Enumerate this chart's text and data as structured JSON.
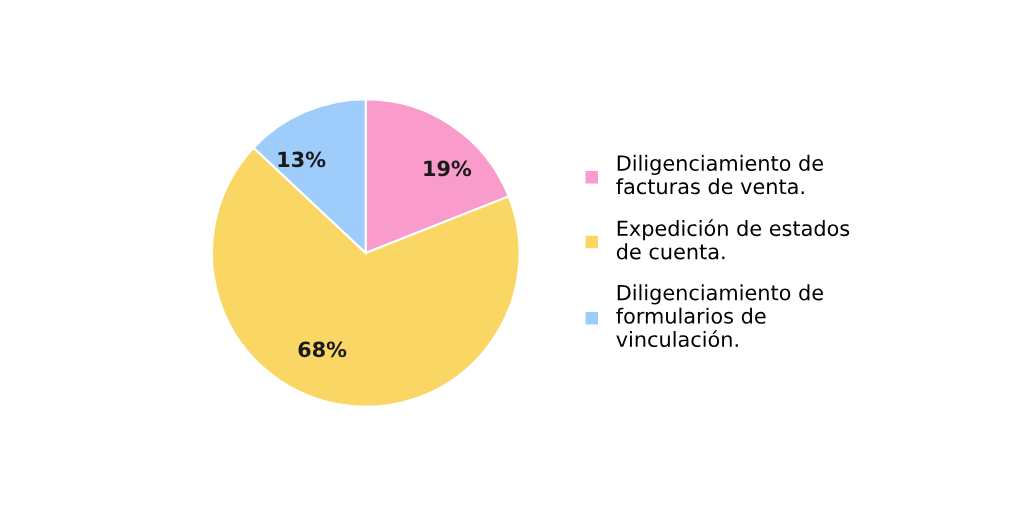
{
  "chart_data": {
    "type": "pie",
    "categories": [
      "Diligenciamiento de\nfacturas de venta.",
      "Expedición de estados\nde cuenta.",
      "Diligenciamiento de\nformularios de\nvinculación."
    ],
    "values": [
      19,
      68,
      13
    ],
    "colors": [
      "#f99ccb",
      "#fad765",
      "#9fcdfb"
    ],
    "value_labels": [
      "19%",
      "68%",
      "13%"
    ],
    "legend": "right"
  }
}
